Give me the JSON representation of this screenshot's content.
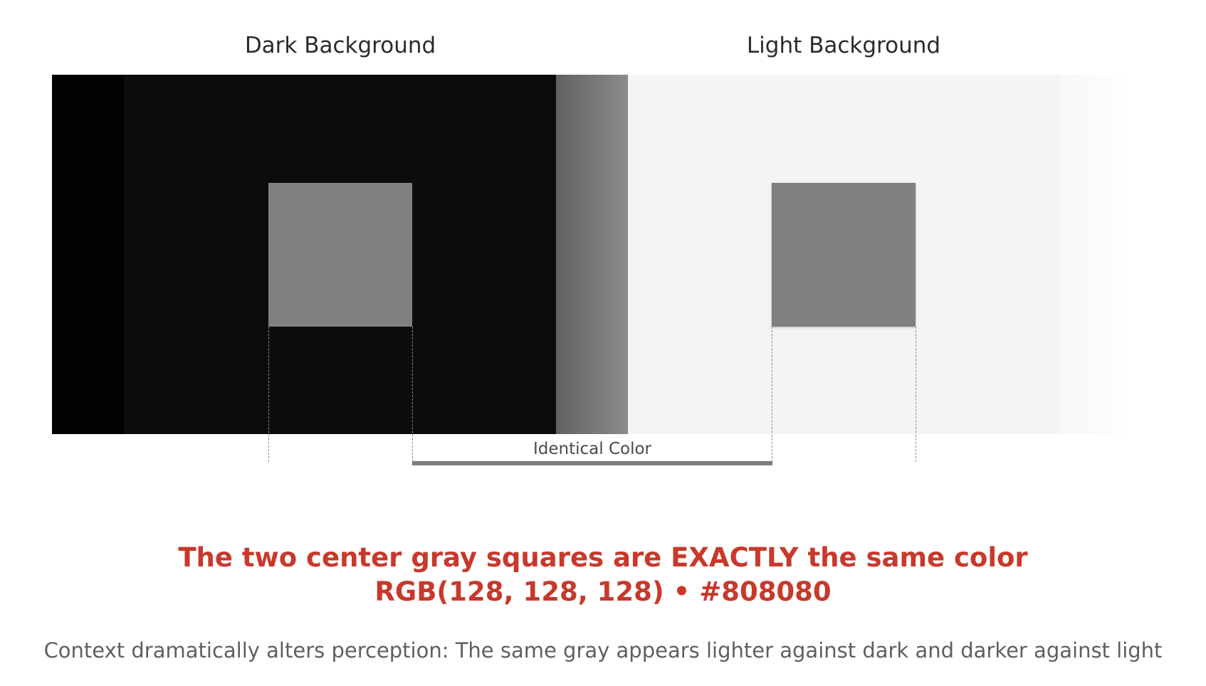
{
  "titles": {
    "dark": "Dark Background",
    "light": "Light Background"
  },
  "squares": {
    "color": "#808080"
  },
  "backgrounds": {
    "dark_edge": "#020202",
    "dark": "#0c0c0c",
    "light": "#f4f4f4"
  },
  "bracket": {
    "label": "Identical Color"
  },
  "headline": {
    "line1": "The two center gray squares are EXACTLY the same color",
    "line2": "RGB(128, 128, 128) • #808080",
    "color": "#c8392b"
  },
  "caption": "Context dramatically alters perception: The same gray appears lighter against dark and darker against light"
}
